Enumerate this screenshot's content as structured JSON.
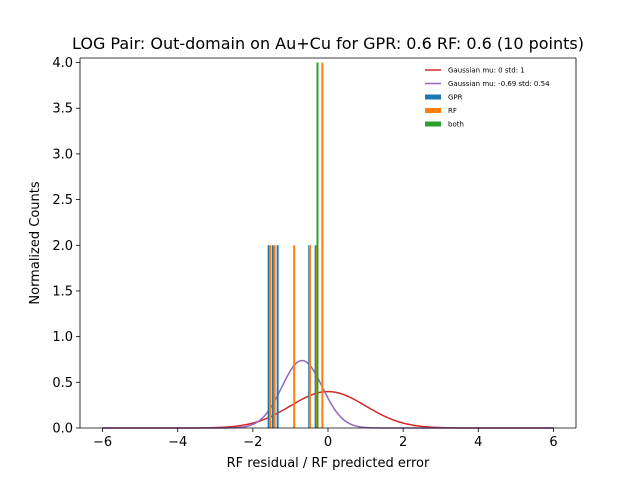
{
  "chart_data": {
    "type": "histogram",
    "title": "LOG Pair: Out-domain on Au+Cu for GPR: 0.6 RF: 0.6 (10 points)",
    "xlabel": "RF residual / RF predicted error",
    "ylabel": "Normalized Counts",
    "xlim": [
      -6.6,
      6.6
    ],
    "ylim": [
      0,
      4.05
    ],
    "xticks": [
      {
        "value": -6,
        "label": "−6"
      },
      {
        "value": -4,
        "label": "−4"
      },
      {
        "value": -2,
        "label": "−2"
      },
      {
        "value": 0,
        "label": "0"
      },
      {
        "value": 2,
        "label": "2"
      },
      {
        "value": 4,
        "label": "4"
      },
      {
        "value": 6,
        "label": "6"
      }
    ],
    "yticks": [
      {
        "value": 0,
        "label": "0.0"
      },
      {
        "value": 0.5,
        "label": "0.5"
      },
      {
        "value": 1,
        "label": "1.0"
      },
      {
        "value": 1.5,
        "label": "1.5"
      },
      {
        "value": 2,
        "label": "2.0"
      },
      {
        "value": 2.5,
        "label": "2.5"
      },
      {
        "value": 3,
        "label": "3.0"
      },
      {
        "value": 3.5,
        "label": "3.5"
      },
      {
        "value": 4,
        "label": "4.0"
      }
    ],
    "legend_position": "top-right",
    "curves": [
      {
        "name": "Gaussian mu: 0 std: 1",
        "mu": 0,
        "std": 1,
        "color": "#d62728"
      },
      {
        "name": "Gaussian mu: -0.69 std: 0.54",
        "mu": -0.69,
        "std": 0.54,
        "color": "#9467bd"
      }
    ],
    "bar_series": [
      {
        "name": "GPR",
        "color": "#1f77b4",
        "bars": [
          {
            "x": -1.58,
            "y": 2
          },
          {
            "x": -1.47,
            "y": 2
          },
          {
            "x": -1.34,
            "y": 2
          },
          {
            "x": -0.5,
            "y": 2
          },
          {
            "x": -0.33,
            "y": 2
          }
        ]
      },
      {
        "name": "RF",
        "color": "#ff7f0e",
        "bars": [
          {
            "x": -1.54,
            "y": 2
          },
          {
            "x": -1.42,
            "y": 2
          },
          {
            "x": -0.9,
            "y": 2
          },
          {
            "x": -0.48,
            "y": 2
          },
          {
            "x": -0.3,
            "y": 2
          },
          {
            "x": -0.15,
            "y": 4
          }
        ]
      },
      {
        "name": "both",
        "color": "#2ca02c",
        "bars": [
          {
            "x": -0.28,
            "y": 4
          }
        ]
      }
    ]
  }
}
